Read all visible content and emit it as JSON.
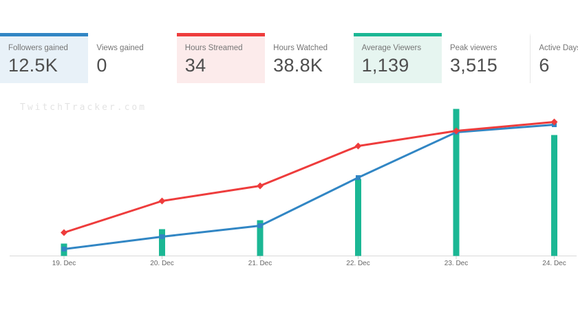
{
  "stats_cards": [
    {
      "label": "Followers gained",
      "value": "12.5K",
      "accent": "#3186c4",
      "background": "#e8f1f8"
    },
    {
      "label": "Views gained",
      "value": "0"
    },
    {
      "label": "Hours Streamed",
      "value": "34",
      "accent": "#ee3c3c",
      "background": "#fcebeb"
    },
    {
      "label": "Hours Watched",
      "value": "38.8K"
    },
    {
      "label": "Average Viewers",
      "value": "1,139",
      "accent": "#1bb794",
      "background": "#e6f5f0"
    },
    {
      "label": "Peak viewers",
      "value": "3,515"
    },
    {
      "label": "Active Days",
      "value": "6"
    }
  ],
  "watermark": "TwitchTracker.com",
  "chart_data": {
    "type": "bar+line combo",
    "title": "",
    "xlabel": "",
    "ylabel": "",
    "grid": false,
    "legend": "none",
    "note": "No y-axis scale or legend is shown in the chart; series values are relative units estimated from pixel heights above the baseline",
    "categories": [
      "19. Dec",
      "20. Dec",
      "21. Dec",
      "22. Dec",
      "23. Dec",
      "24. Dec"
    ],
    "series": [
      {
        "name": "teal-bars",
        "type": "bar",
        "color": "#1bb794",
        "values": [
          18,
          39,
          52,
          112,
          214,
          176
        ]
      },
      {
        "name": "blue-line",
        "type": "line",
        "color": "#3186c4",
        "marker": "square",
        "values": [
          10,
          28,
          44,
          114,
          180,
          191
        ]
      },
      {
        "name": "red-line",
        "type": "line",
        "color": "#ee3c3c",
        "marker": "diamond",
        "values": [
          34,
          80,
          102,
          160,
          182,
          195
        ]
      }
    ],
    "axis_line_color": "#d9d9d9",
    "tick_color": "#cccccc",
    "axis_label_color": "#666666"
  }
}
